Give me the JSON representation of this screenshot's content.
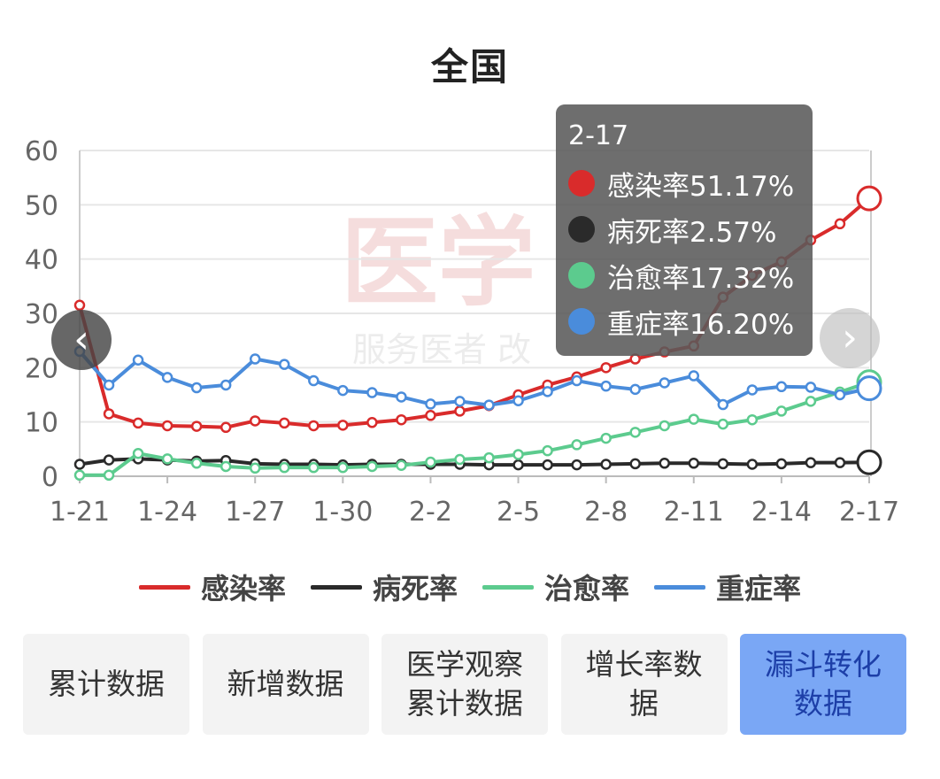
{
  "chart_data": {
    "type": "line",
    "title": "全国",
    "categories": [
      "1-21",
      "1-22",
      "1-23",
      "1-24",
      "1-25",
      "1-26",
      "1-27",
      "1-28",
      "1-29",
      "1-30",
      "1-31",
      "2-1",
      "2-2",
      "2-3",
      "2-4",
      "2-5",
      "2-6",
      "2-7",
      "2-8",
      "2-9",
      "2-10",
      "2-11",
      "2-12",
      "2-13",
      "2-14",
      "2-15",
      "2-16",
      "2-17"
    ],
    "x_tick_labels": [
      "1-21",
      "1-24",
      "1-27",
      "1-30",
      "2-2",
      "2-5",
      "2-8",
      "2-11",
      "2-14",
      "2-17"
    ],
    "ylim": [
      0,
      60
    ],
    "y_ticks": [
      "0",
      "10",
      "20",
      "30",
      "40",
      "50",
      "60"
    ],
    "grid": true,
    "legend_position": "bottom",
    "series": [
      {
        "name": "感染率",
        "color": "#d92b2b",
        "values": [
          31.5,
          11.5,
          9.8,
          9.3,
          9.2,
          9.0,
          10.2,
          9.8,
          9.3,
          9.4,
          9.9,
          10.4,
          11.2,
          12.0,
          13.0,
          15.0,
          16.8,
          18.3,
          20.0,
          21.6,
          22.9,
          24.0,
          33.0,
          37.0,
          39.5,
          43.5,
          46.5,
          51.17
        ]
      },
      {
        "name": "病死率",
        "color": "#2a2a2a",
        "values": [
          2.2,
          3.0,
          3.2,
          3.0,
          2.8,
          2.9,
          2.3,
          2.2,
          2.2,
          2.1,
          2.2,
          2.2,
          2.2,
          2.2,
          2.1,
          2.1,
          2.1,
          2.1,
          2.2,
          2.3,
          2.4,
          2.4,
          2.3,
          2.2,
          2.3,
          2.5,
          2.5,
          2.57
        ]
      },
      {
        "name": "治愈率",
        "color": "#5ccb8e",
        "values": [
          0.2,
          0.2,
          4.2,
          3.2,
          2.4,
          1.8,
          1.5,
          1.6,
          1.6,
          1.6,
          1.8,
          2.0,
          2.6,
          3.1,
          3.4,
          4.0,
          4.7,
          5.8,
          7.0,
          8.1,
          9.3,
          10.5,
          9.6,
          10.4,
          12.0,
          13.8,
          15.5,
          17.32
        ]
      },
      {
        "name": "重症率",
        "color": "#4a8cdb",
        "values": [
          23.0,
          16.8,
          21.4,
          18.2,
          16.3,
          16.8,
          21.6,
          20.6,
          17.6,
          15.8,
          15.4,
          14.6,
          13.3,
          13.8,
          13.1,
          13.9,
          15.6,
          17.6,
          16.6,
          16.0,
          17.2,
          18.5,
          13.2,
          15.9,
          16.5,
          16.4,
          15.0,
          16.2
        ]
      }
    ],
    "tooltip": {
      "date": "2-17",
      "rows": [
        {
          "text": "感染率51.17%",
          "color": "#d92b2b"
        },
        {
          "text": "病死率2.57%",
          "color": "#2a2a2a"
        },
        {
          "text": "治愈率17.32%",
          "color": "#5ccb8e"
        },
        {
          "text": "重症率16.20%",
          "color": "#4a8cdb"
        }
      ]
    },
    "watermark": {
      "main": "医学",
      "sub": "服务医者 改"
    }
  },
  "nav": {
    "prev_icon": "chevron-left-icon",
    "next_icon": "chevron-right-icon",
    "prev_glyph": "‹",
    "next_glyph": "›"
  },
  "buttons": [
    {
      "label": "累计数据",
      "active": false
    },
    {
      "label": "新增数据",
      "active": false
    },
    {
      "label": "医学观察累计数据",
      "active": false
    },
    {
      "label": "增长率数据",
      "active": false
    },
    {
      "label": "漏斗转化数据",
      "active": true
    }
  ]
}
